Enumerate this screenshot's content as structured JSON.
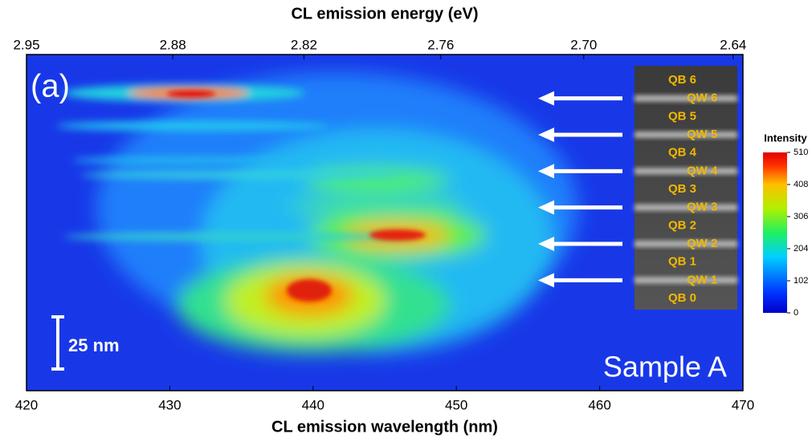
{
  "chart_data": {
    "type": "heatmap",
    "panel_label": "(a)",
    "x_label": "CL emission wavelength (nm)",
    "x2_label": "CL emission energy (eV)",
    "xlim": [
      420,
      470
    ],
    "xticks": [
      420,
      430,
      440,
      450,
      460,
      470
    ],
    "x2lim": [
      2.95,
      2.64
    ],
    "x2ticks": [
      2.95,
      2.88,
      2.82,
      2.76,
      {
        "value": 2.7,
        "label": "2.70"
      },
      2.64
    ],
    "colorbar": {
      "title": "Intensity",
      "lim": [
        0,
        510
      ],
      "ticks": [
        0,
        102,
        204,
        306,
        408,
        510
      ]
    },
    "scale_bar": "25 nm",
    "sample_label": "Sample A",
    "layer_labels": [
      "QB 6",
      "QW 6",
      "QB 5",
      "QW 5",
      "QB 4",
      "QW 4",
      "QB 3",
      "QW 3",
      "QB 2",
      "QW 2",
      "QB 1",
      "QW 1",
      "QB 0"
    ]
  }
}
